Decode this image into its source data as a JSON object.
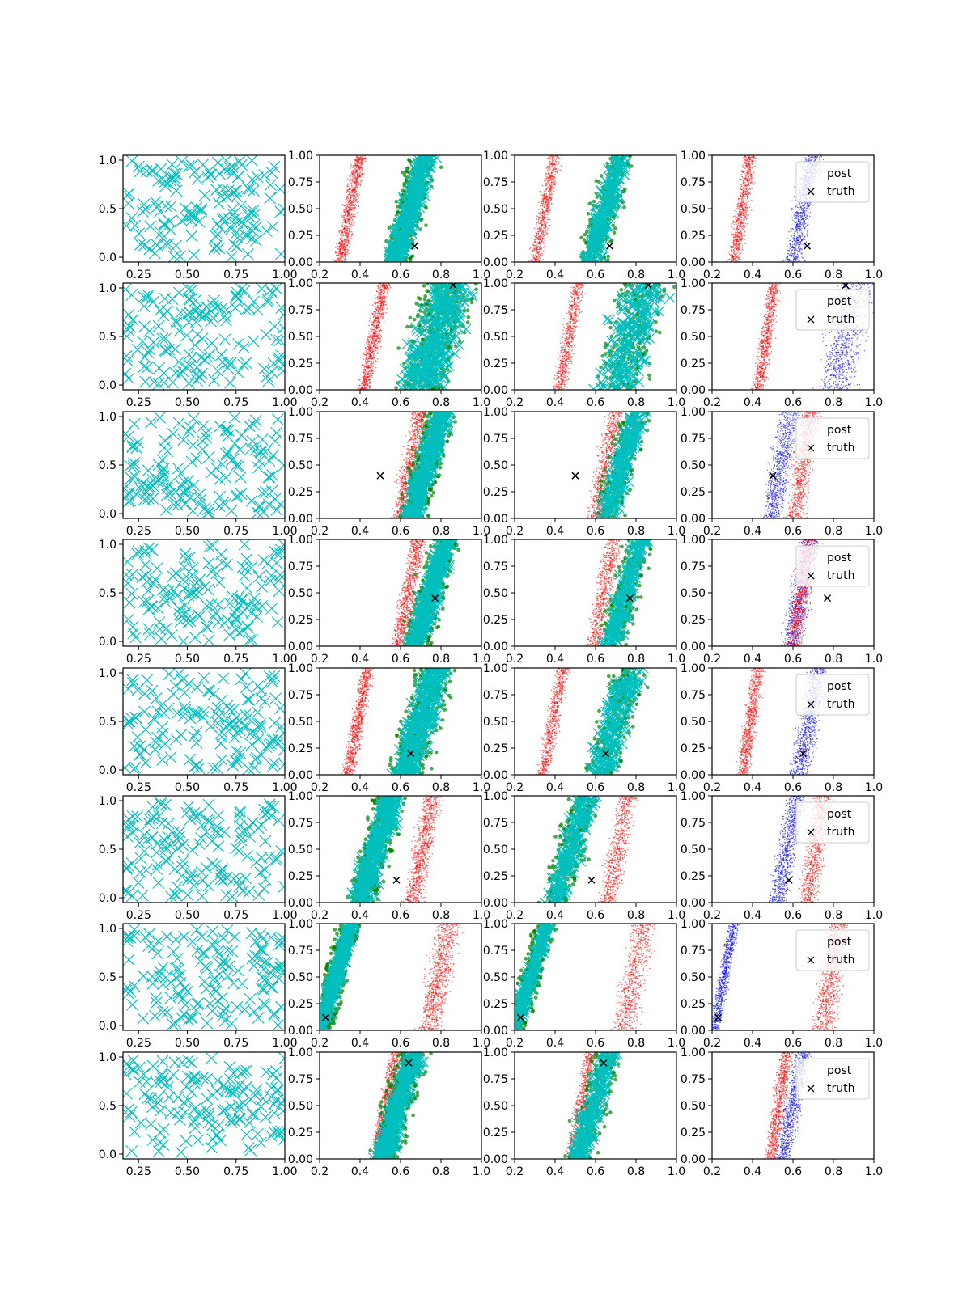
{
  "figure": {
    "layout": "8 rows x 4 columns of scatter panels",
    "legend_labels": [
      "post",
      "truth"
    ]
  },
  "colors": {
    "random_points": "#00bfbf",
    "prior_cloud": "#ff0000",
    "sample_cloud": "#008000",
    "likelihood_cloud": "#00bfbf",
    "post_cloud": "#0000ff",
    "truth_marker": "#000000"
  },
  "axes": {
    "col1": {
      "xticks": [
        "0.25",
        "0.50",
        "0.75",
        "1.00"
      ],
      "xtick_values": [
        0.25,
        0.5,
        0.75,
        1.0
      ],
      "yticks": [
        "0.0",
        "0.5",
        "1.0"
      ],
      "ytick_values": [
        0.0,
        0.5,
        1.0
      ],
      "xlim": [
        0.17,
        1.0
      ],
      "ylim": [
        -0.05,
        1.05
      ]
    },
    "col2to4": {
      "xticks": [
        "0.2",
        "0.4",
        "0.6",
        "0.8",
        "1.0"
      ],
      "xtick_values": [
        0.2,
        0.4,
        0.6,
        0.8,
        1.0
      ],
      "yticks": [
        "0.00",
        "0.25",
        "0.50",
        "0.75",
        "1.00"
      ],
      "ytick_values": [
        0.0,
        0.25,
        0.5,
        0.75,
        1.0
      ],
      "xlim": [
        0.2,
        1.0
      ],
      "ylim": [
        0.0,
        1.0
      ]
    }
  },
  "chart_data": [
    {
      "row": 1,
      "type": "scatter",
      "truth": [
        0.67,
        0.15
      ],
      "prior_band": [
        0.3,
        0.4
      ],
      "likelihood_band": [
        0.58,
        0.72
      ],
      "post_band": [
        0.58,
        0.72
      ],
      "post_order": "blue-right"
    },
    {
      "row": 2,
      "type": "scatter",
      "truth": [
        0.86,
        0.98
      ],
      "prior_band": [
        0.42,
        0.52
      ],
      "likelihood_band": [
        0.6,
        0.95
      ],
      "post_band": [
        0.72,
        1.0
      ],
      "post_order": "blue-right"
    },
    {
      "row": 3,
      "type": "scatter",
      "truth": [
        0.5,
        0.4
      ],
      "prior_band": [
        0.58,
        0.72
      ],
      "likelihood_band": [
        0.66,
        0.8
      ],
      "post_band": [
        0.46,
        0.62
      ],
      "post_order": "blue-left"
    },
    {
      "row": 4,
      "type": "scatter",
      "truth": [
        0.77,
        0.45
      ],
      "prior_band": [
        0.58,
        0.7
      ],
      "likelihood_band": [
        0.68,
        0.82
      ],
      "post_band": [
        0.56,
        0.72
      ],
      "post_order": "overlap"
    },
    {
      "row": 5,
      "type": "scatter",
      "truth": [
        0.65,
        0.2
      ],
      "prior_band": [
        0.34,
        0.44
      ],
      "likelihood_band": [
        0.6,
        0.8
      ],
      "post_band": [
        0.6,
        0.76
      ],
      "post_order": "blue-right"
    },
    {
      "row": 6,
      "type": "scatter",
      "truth": [
        0.58,
        0.21
      ],
      "prior_band": [
        0.64,
        0.78
      ],
      "likelihood_band": [
        0.4,
        0.56
      ],
      "post_band": [
        0.5,
        0.64
      ],
      "post_order": "blue-left"
    },
    {
      "row": 7,
      "type": "scatter",
      "truth": [
        0.23,
        0.12
      ],
      "prior_band": [
        0.7,
        0.88
      ],
      "likelihood_band": [
        0.24,
        0.32
      ],
      "post_band": [
        0.22,
        0.3
      ],
      "post_order": "blue-left"
    },
    {
      "row": 8,
      "type": "scatter",
      "truth": [
        0.64,
        0.9
      ],
      "prior_band": [
        0.48,
        0.58
      ],
      "likelihood_band": [
        0.52,
        0.66
      ],
      "post_band": [
        0.54,
        0.66
      ],
      "post_order": "blue-right"
    }
  ]
}
